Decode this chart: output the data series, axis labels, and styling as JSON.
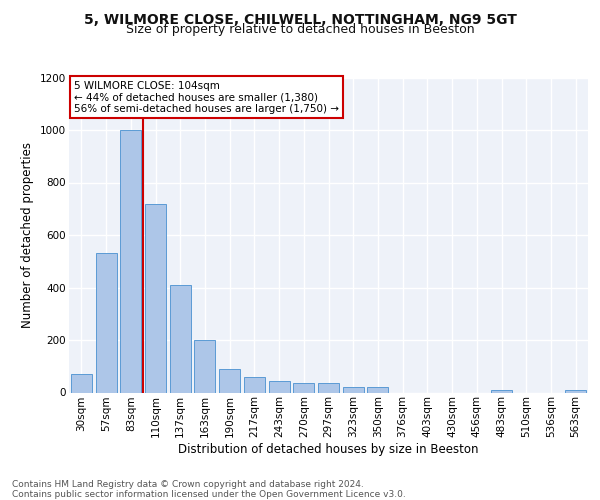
{
  "title1": "5, WILMORE CLOSE, CHILWELL, NOTTINGHAM, NG9 5GT",
  "title2": "Size of property relative to detached houses in Beeston",
  "xlabel": "Distribution of detached houses by size in Beeston",
  "ylabel": "Number of detached properties",
  "categories": [
    "30sqm",
    "57sqm",
    "83sqm",
    "110sqm",
    "137sqm",
    "163sqm",
    "190sqm",
    "217sqm",
    "243sqm",
    "270sqm",
    "297sqm",
    "323sqm",
    "350sqm",
    "376sqm",
    "403sqm",
    "430sqm",
    "456sqm",
    "483sqm",
    "510sqm",
    "536sqm",
    "563sqm"
  ],
  "values": [
    70,
    530,
    1000,
    720,
    410,
    200,
    90,
    60,
    45,
    35,
    35,
    20,
    20,
    0,
    0,
    0,
    0,
    10,
    0,
    0,
    10
  ],
  "bar_color": "#adc6e8",
  "bar_edge_color": "#5b9bd5",
  "annotation_text": "5 WILMORE CLOSE: 104sqm\n← 44% of detached houses are smaller (1,380)\n56% of semi-detached houses are larger (1,750) →",
  "annotation_box_color": "#ffffff",
  "annotation_box_edge": "#cc0000",
  "red_line_color": "#cc0000",
  "ylim": [
    0,
    1200
  ],
  "yticks": [
    0,
    200,
    400,
    600,
    800,
    1000,
    1200
  ],
  "background_color": "#eef2f9",
  "grid_color": "#ffffff",
  "footer": "Contains HM Land Registry data © Crown copyright and database right 2024.\nContains public sector information licensed under the Open Government Licence v3.0.",
  "title1_fontsize": 10,
  "title2_fontsize": 9,
  "xlabel_fontsize": 8.5,
  "ylabel_fontsize": 8.5,
  "tick_fontsize": 7.5,
  "footer_fontsize": 6.5
}
